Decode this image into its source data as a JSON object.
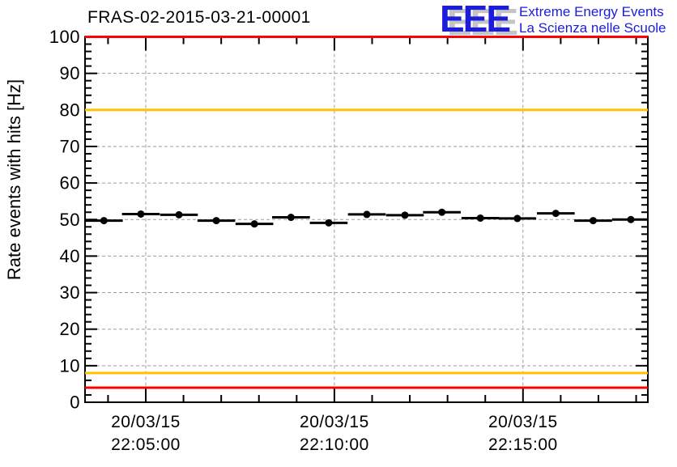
{
  "header": {
    "logo": {
      "acronym": "EEE",
      "line1": "Extreme Energy Events",
      "line2": "La Scienza nelle Scuole",
      "blue": "#1c1cdd",
      "shadow": "#c4c4c4"
    }
  },
  "chart_data": {
    "type": "scatter",
    "title": "FRAS-02-2015-03-21-00001",
    "xlabel": "",
    "ylabel": "Rate events with hits [Hz]",
    "ylim": [
      0,
      100
    ],
    "y_major_step": 10,
    "y_minor_step": 2,
    "x_unit": "minutes after 22:00",
    "xlim": [
      3.39,
      18.31
    ],
    "x_major_ticks": [
      {
        "min": 5,
        "date": "20/03/15",
        "time": "22:05:00"
      },
      {
        "min": 10,
        "date": "20/03/15",
        "time": "22:10:00"
      },
      {
        "min": 15,
        "date": "20/03/15",
        "time": "22:15:00"
      }
    ],
    "x_minor_step_min": 1,
    "grid": true,
    "points": {
      "x_min": [
        3.89,
        4.87,
        5.88,
        6.87,
        7.88,
        8.85,
        9.85,
        10.86,
        11.87,
        12.85,
        13.87,
        14.85,
        15.87,
        16.86,
        17.86
      ],
      "y_hz": [
        49.7,
        51.5,
        51.3,
        49.7,
        48.8,
        50.6,
        49.1,
        51.4,
        51.2,
        52.0,
        50.4,
        50.3,
        51.7,
        49.7,
        50.0
      ],
      "xerr_min": 0.5
    },
    "threshold_lines": [
      {
        "y": 100,
        "color": "#fe0000"
      },
      {
        "y": 80,
        "color": "#fdc300"
      },
      {
        "y": 8,
        "color": "#fdc300"
      },
      {
        "y": 4,
        "color": "#fe0000"
      }
    ],
    "colors": {
      "marker": "#000000",
      "grid": "#9d9d9d",
      "axis": "#000000"
    }
  }
}
